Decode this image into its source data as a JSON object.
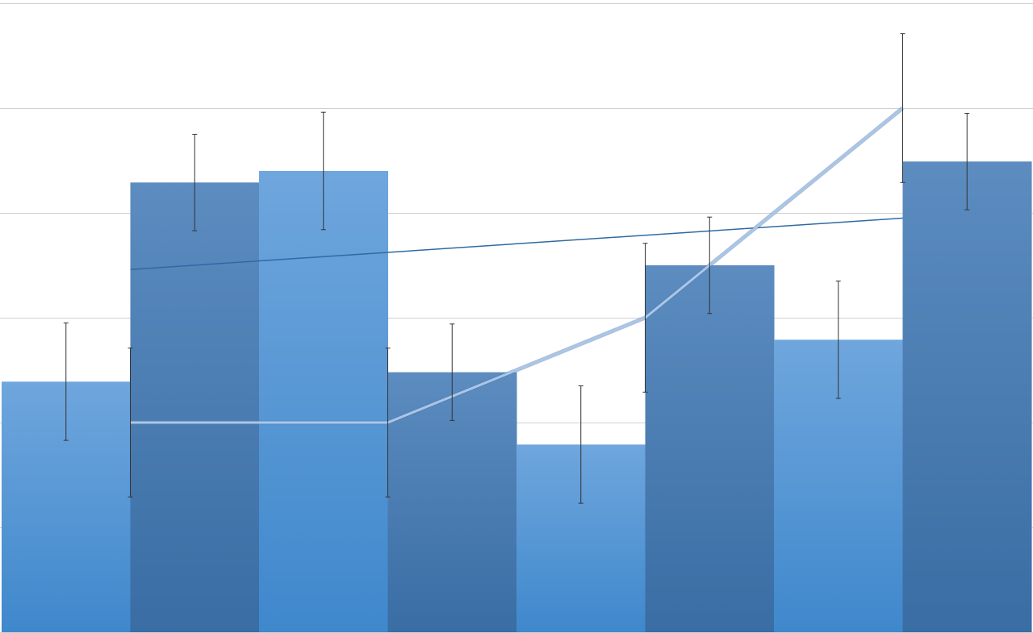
{
  "chart_data": {
    "type": "bar",
    "title": "",
    "xlabel": "",
    "ylabel": "",
    "ylim": [
      0,
      6
    ],
    "grid": true,
    "legend": "none",
    "categories": [
      "",
      "",
      "",
      "",
      "",
      "",
      "",
      ""
    ],
    "series": [
      {
        "type": "bar",
        "values": [
          2.39,
          4.29,
          4.4,
          2.48,
          1.79,
          3.5,
          2.79,
          4.49
        ],
        "error": [
          0.56,
          0.46,
          0.56,
          0.46,
          0.56,
          0.46,
          0.56,
          0.46
        ]
      },
      {
        "type": "line",
        "x": [
          1,
          3,
          5,
          7
        ],
        "values": [
          2,
          2,
          3,
          5
        ],
        "error": [
          0.71,
          0.71,
          0.71,
          0.71
        ]
      },
      {
        "type": "linear-trendline",
        "x": [
          1,
          7
        ],
        "values": [
          3.46,
          3.95
        ]
      }
    ],
    "colors": {
      "bar_light_top": "#6fa6dd",
      "bar_light_bottom": "#3f88cc",
      "bar_dark_top": "#5c8cc0",
      "bar_dark_bottom": "#396da3",
      "line": "#a9c6ea",
      "trendline": "#2f6aa3",
      "error_bar": "#333333",
      "grid": "#d0d0d0"
    }
  }
}
